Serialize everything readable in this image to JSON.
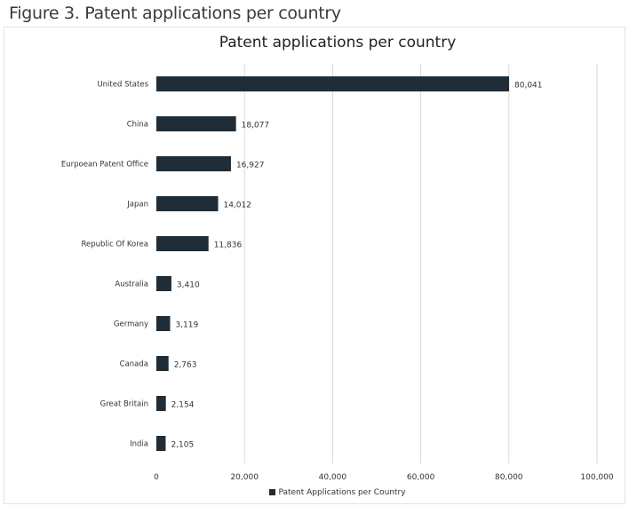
{
  "caption": "Figure 3. Patent applications per country",
  "colors": {
    "bar": "#1f2d38",
    "grid": "#d9d9d9",
    "text": "#333333"
  },
  "chart_data": {
    "type": "bar",
    "orientation": "horizontal",
    "title": "Patent applications per country",
    "categories": [
      "United States",
      "China",
      "Eurpoean Patent Office",
      "Japan",
      "Republic Of Korea",
      "Australia",
      "Germany",
      "Canada",
      "Great Britain",
      "India"
    ],
    "values": [
      80041,
      18077,
      16927,
      14012,
      11836,
      3410,
      3119,
      2763,
      2154,
      2105
    ],
    "value_labels": [
      "80,041",
      "18,077",
      "16,927",
      "14,012",
      "11,836",
      "3,410",
      "3,119",
      "2,763",
      "2,154",
      "2,105"
    ],
    "series": [
      {
        "name": "Patent Applications per Country",
        "values": [
          80041,
          18077,
          16927,
          14012,
          11836,
          3410,
          3119,
          2763,
          2154,
          2105
        ]
      }
    ],
    "xlim": [
      0,
      100000
    ],
    "xticks": [
      0,
      20000,
      40000,
      60000,
      80000,
      100000
    ],
    "xtick_labels": [
      "0",
      "20,000",
      "40,000",
      "60,000",
      "80,000",
      "100,000"
    ],
    "grid": true,
    "legend_position": "bottom"
  }
}
